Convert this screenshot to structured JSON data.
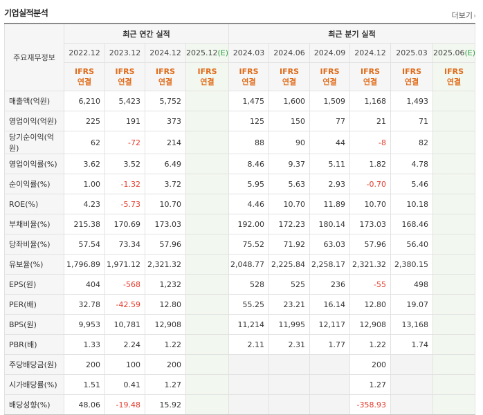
{
  "title": "기업실적분석",
  "more_label": "더보기",
  "more_arrow": "›",
  "header": {
    "row_label": "주요재무정보",
    "annual_group": "최근 연간 실적",
    "quarter_group": "최근 분기 실적",
    "annual_periods": [
      "2022.12",
      "2023.12",
      "2024.12",
      "2025.12"
    ],
    "quarter_periods": [
      "2024.03",
      "2024.06",
      "2024.09",
      "2024.12",
      "2025.03",
      "2025.06"
    ],
    "estimate_mark": "(E)",
    "ifrs": "IFRS",
    "consolidated": "연결"
  },
  "rows": [
    {
      "label": "매출액(억원)",
      "annual": [
        "6,210",
        "5,423",
        "5,752",
        ""
      ],
      "quarter": [
        "1,475",
        "1,600",
        "1,509",
        "1,168",
        "1,493",
        ""
      ]
    },
    {
      "label": "영업이익(억원)",
      "annual": [
        "225",
        "191",
        "373",
        ""
      ],
      "quarter": [
        "125",
        "150",
        "77",
        "21",
        "71",
        ""
      ]
    },
    {
      "label": "당기순이익(억원)",
      "annual": [
        "62",
        "-72",
        "214",
        ""
      ],
      "quarter": [
        "88",
        "90",
        "44",
        "-8",
        "82",
        ""
      ]
    },
    {
      "label": "영업이익률(%)",
      "annual": [
        "3.62",
        "3.52",
        "6.49",
        ""
      ],
      "quarter": [
        "8.46",
        "9.37",
        "5.11",
        "1.82",
        "4.78",
        ""
      ]
    },
    {
      "label": "순이익률(%)",
      "annual": [
        "1.00",
        "-1.32",
        "3.72",
        ""
      ],
      "quarter": [
        "5.95",
        "5.63",
        "2.93",
        "-0.70",
        "5.46",
        ""
      ]
    },
    {
      "label": "ROE(%)",
      "annual": [
        "4.23",
        "-5.73",
        "10.70",
        ""
      ],
      "quarter": [
        "4.46",
        "10.70",
        "11.89",
        "10.70",
        "10.18",
        ""
      ]
    },
    {
      "label": "부채비율(%)",
      "annual": [
        "215.38",
        "170.69",
        "173.03",
        ""
      ],
      "quarter": [
        "192.00",
        "172.23",
        "180.14",
        "173.03",
        "168.46",
        ""
      ]
    },
    {
      "label": "당좌비율(%)",
      "annual": [
        "57.54",
        "73.34",
        "57.96",
        ""
      ],
      "quarter": [
        "75.52",
        "71.92",
        "63.03",
        "57.96",
        "56.40",
        ""
      ]
    },
    {
      "label": "유보율(%)",
      "annual": [
        "1,796.89",
        "1,971.12",
        "2,321.32",
        ""
      ],
      "quarter": [
        "2,048.77",
        "2,225.84",
        "2,258.17",
        "2,321.32",
        "2,380.15",
        ""
      ]
    },
    {
      "label": "EPS(원)",
      "annual": [
        "404",
        "-568",
        "1,232",
        ""
      ],
      "quarter": [
        "528",
        "525",
        "236",
        "-55",
        "498",
        ""
      ]
    },
    {
      "label": "PER(배)",
      "annual": [
        "32.78",
        "-42.59",
        "12.80",
        ""
      ],
      "quarter": [
        "55.25",
        "23.21",
        "16.14",
        "12.80",
        "19.07",
        ""
      ]
    },
    {
      "label": "BPS(원)",
      "annual": [
        "9,953",
        "10,781",
        "12,908",
        ""
      ],
      "quarter": [
        "11,214",
        "11,995",
        "12,117",
        "12,908",
        "13,168",
        ""
      ]
    },
    {
      "label": "PBR(배)",
      "annual": [
        "1.33",
        "2.24",
        "1.22",
        ""
      ],
      "quarter": [
        "2.11",
        "2.31",
        "1.77",
        "1.22",
        "1.74",
        ""
      ]
    },
    {
      "label": "주당배당금(원)",
      "annual": [
        "200",
        "100",
        "200",
        ""
      ],
      "quarter": [
        "",
        "",
        "",
        "200",
        "",
        ""
      ]
    },
    {
      "label": "시가배당률(%)",
      "annual": [
        "1.51",
        "0.41",
        "1.27",
        ""
      ],
      "quarter": [
        "",
        "",
        "",
        "1.27",
        "",
        ""
      ]
    },
    {
      "label": "배당성향(%)",
      "annual": [
        "48.06",
        "-19.48",
        "15.92",
        ""
      ],
      "quarter": [
        "",
        "",
        "",
        "-358.93",
        "",
        ""
      ]
    }
  ]
}
